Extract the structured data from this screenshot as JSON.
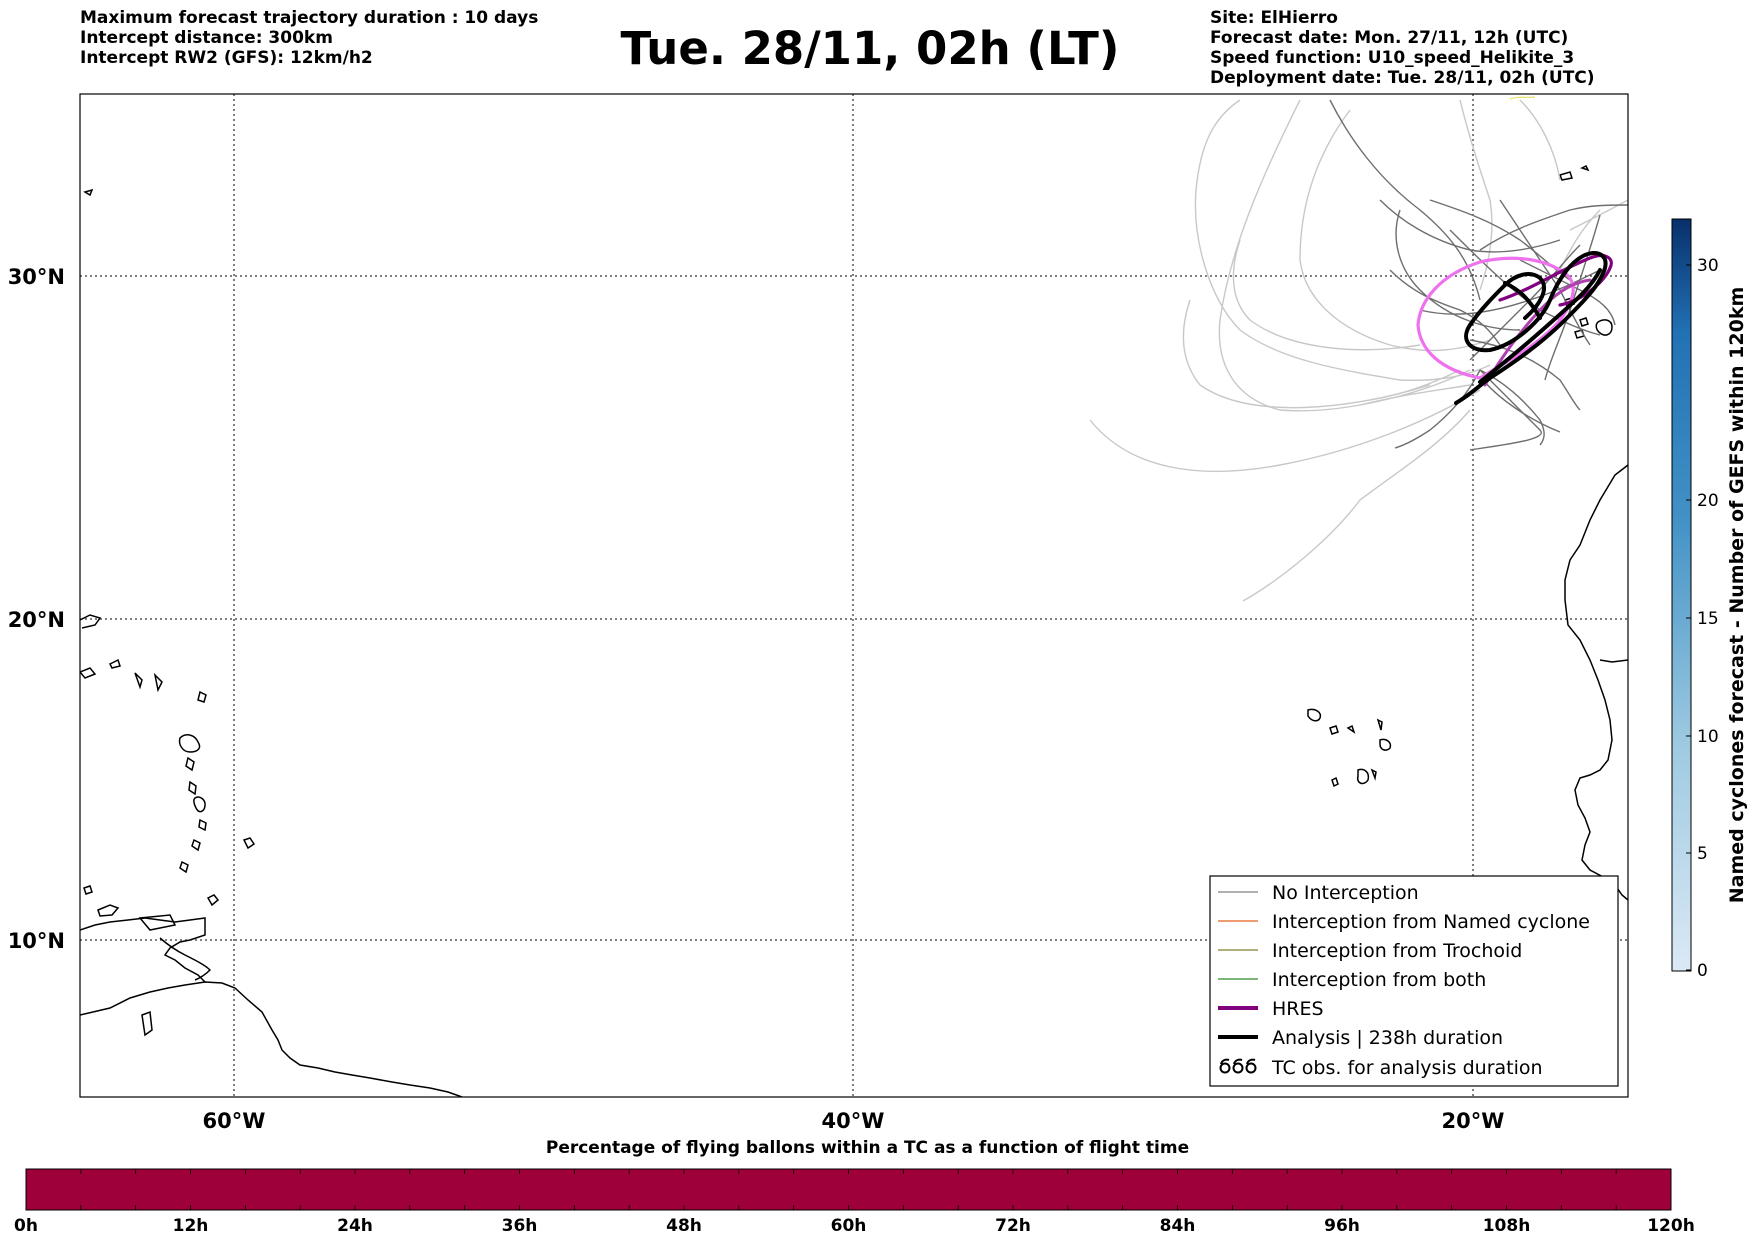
{
  "header_left": [
    "Maximum forecast trajectory duration : 10 days",
    "Intercept distance: 300km",
    "Intercept RW2 (GFS):  12km/h2"
  ],
  "title": "Tue. 28/11, 02h (LT)",
  "header_right": [
    "Site: ElHierro",
    "Forecast date: Mon. 27/11, 12h (UTC)",
    "Speed function: U10_speed_Helikite_3",
    "Deployment date: Tue. 28/11, 02h (UTC)"
  ],
  "map": {
    "lat_labels": [
      "30°N",
      "20°N",
      "10°N"
    ],
    "lon_labels": [
      "60°W",
      "40°W",
      "20°W"
    ]
  },
  "legend": [
    {
      "label": "No Interception",
      "color": "#808080",
      "icon": "thin-line"
    },
    {
      "label": "Interception from Named cyclone",
      "color": "#e8601c",
      "icon": "thin-line"
    },
    {
      "label": "Interception from Trochoid",
      "color": "#808030",
      "icon": "thin-line"
    },
    {
      "label": "Interception from both",
      "color": "#2a8a2a",
      "icon": "thin-line"
    },
    {
      "label": "HRES",
      "color": "#800080",
      "icon": "thick-line"
    },
    {
      "label": "Analysis | 238h duration",
      "color": "#000000",
      "icon": "thick-line"
    },
    {
      "label": "TC obs. for analysis duration",
      "color": "#000000",
      "icon": "hurricane-symbols-icon"
    }
  ],
  "colorbar": {
    "label": "Named cyclones forecast - Number of GEFS within 120km",
    "ticks": [
      "30",
      "20",
      "15",
      "10",
      "5",
      "0"
    ],
    "color_low": "#dbe9f6",
    "color_high": "#08306b"
  },
  "pct_bar": {
    "title": "Percentage of flying ballons within a TC as a function of flight time",
    "ticks": [
      "0h",
      "12h",
      "24h",
      "36h",
      "48h",
      "60h",
      "72h",
      "84h",
      "96h",
      "108h",
      "120h"
    ],
    "color": "#9e003a"
  }
}
